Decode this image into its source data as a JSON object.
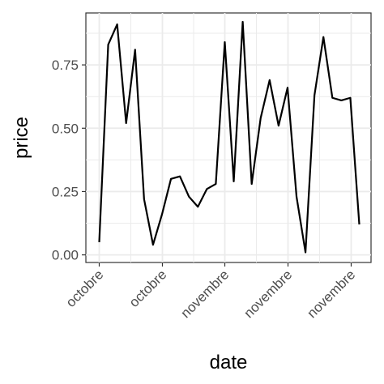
{
  "chart_data": {
    "type": "line",
    "xlabel": "date",
    "ylabel": "price",
    "ylim": [
      -0.03,
      0.955
    ],
    "x_ticks": [
      "octobre",
      "octobre",
      "novembre",
      "novembre",
      "novembre"
    ],
    "y_ticks": [
      "0.00",
      "0.25",
      "0.50",
      "0.75"
    ],
    "y_tick_values": [
      0,
      0.25,
      0.5,
      0.75
    ],
    "grid": true,
    "background": "#ffffff",
    "grid_color": "#ebebeb",
    "line_color": "#000000",
    "series": [
      {
        "values": [
          0.05,
          0.83,
          0.91,
          0.52,
          0.81,
          0.22,
          0.04,
          0.16,
          0.3,
          0.31,
          0.23,
          0.19,
          0.26,
          0.28,
          0.84,
          0.29,
          0.92,
          0.28,
          0.54,
          0.69,
          0.51,
          0.66,
          0.23,
          0.01,
          0.63,
          0.86,
          0.62,
          0.61,
          0.62,
          0.12
        ]
      }
    ]
  }
}
